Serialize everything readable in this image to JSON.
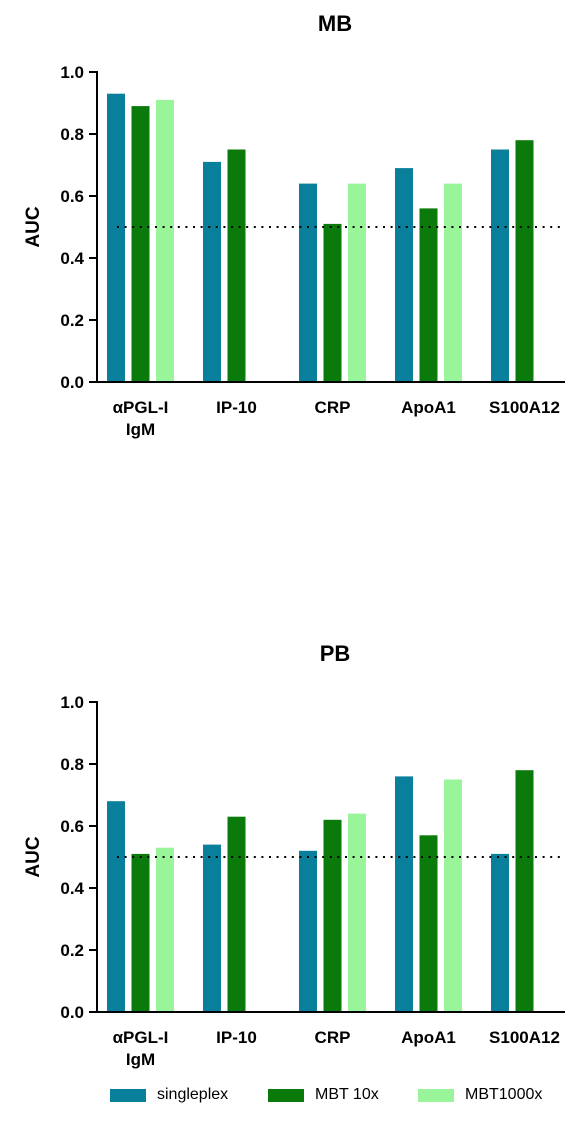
{
  "colors": {
    "singleplex": "#0a7f9b",
    "mbt10x": "#0a7a0a",
    "mbt1000x": "#9af59a"
  },
  "legend": {
    "items": [
      {
        "key": "singleplex",
        "label": "singleplex"
      },
      {
        "key": "mbt10x",
        "label": "MBT 10x"
      },
      {
        "key": "mbt1000x",
        "label": "MBT1000x"
      }
    ]
  },
  "chart_data": [
    {
      "type": "bar",
      "title": "MB",
      "ylabel": "AUC",
      "xlabel": "",
      "ylim": [
        0,
        1.0
      ],
      "yticks": [
        "0.0",
        "0.2",
        "0.4",
        "0.6",
        "0.8",
        "1.0"
      ],
      "categories": [
        {
          "lines": [
            "αPGL-I",
            "IgM"
          ]
        },
        {
          "lines": [
            "IP-10"
          ]
        },
        {
          "lines": [
            "CRP"
          ]
        },
        {
          "lines": [
            "ApoA1"
          ]
        },
        {
          "lines": [
            "S100A12"
          ]
        }
      ],
      "series": [
        {
          "name": "singleplex",
          "values": [
            0.93,
            0.71,
            0.64,
            0.69,
            0.75
          ]
        },
        {
          "name": "MBT 10x",
          "values": [
            0.89,
            0.75,
            0.51,
            0.56,
            0.78
          ]
        },
        {
          "name": "MBT1000x",
          "values": [
            0.91,
            null,
            0.64,
            0.64,
            null
          ]
        }
      ],
      "reference_line": 0.5
    },
    {
      "type": "bar",
      "title": "PB",
      "ylabel": "AUC",
      "xlabel": "",
      "ylim": [
        0,
        1.0
      ],
      "yticks": [
        "0.0",
        "0.2",
        "0.4",
        "0.6",
        "0.8",
        "1.0"
      ],
      "categories": [
        {
          "lines": [
            "αPGL-I",
            "IgM"
          ]
        },
        {
          "lines": [
            "IP-10"
          ]
        },
        {
          "lines": [
            "CRP"
          ]
        },
        {
          "lines": [
            "ApoA1"
          ]
        },
        {
          "lines": [
            "S100A12"
          ]
        }
      ],
      "series": [
        {
          "name": "singleplex",
          "values": [
            0.68,
            0.54,
            0.52,
            0.76,
            0.51
          ]
        },
        {
          "name": "MBT 10x",
          "values": [
            0.51,
            0.63,
            0.62,
            0.57,
            0.78
          ]
        },
        {
          "name": "MBT1000x",
          "values": [
            0.53,
            null,
            0.64,
            0.75,
            null
          ]
        }
      ],
      "reference_line": 0.5
    }
  ]
}
